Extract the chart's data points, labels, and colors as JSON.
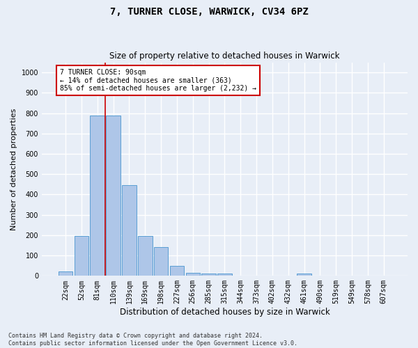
{
  "title": "7, TURNER CLOSE, WARWICK, CV34 6PZ",
  "subtitle": "Size of property relative to detached houses in Warwick",
  "xlabel": "Distribution of detached houses by size in Warwick",
  "ylabel": "Number of detached properties",
  "bin_labels": [
    "22sqm",
    "52sqm",
    "81sqm",
    "110sqm",
    "139sqm",
    "169sqm",
    "198sqm",
    "227sqm",
    "256sqm",
    "285sqm",
    "315sqm",
    "344sqm",
    "373sqm",
    "402sqm",
    "432sqm",
    "461sqm",
    "490sqm",
    "519sqm",
    "549sqm",
    "578sqm",
    "607sqm"
  ],
  "bar_heights": [
    20,
    195,
    790,
    790,
    445,
    195,
    140,
    50,
    15,
    12,
    12,
    0,
    0,
    0,
    0,
    10,
    0,
    0,
    0,
    0,
    0
  ],
  "bar_color": "#aec6e8",
  "bar_edge_color": "#5a9fd4",
  "vline_x": 2.5,
  "vline_color": "#cc0000",
  "annotation_text": "7 TURNER CLOSE: 90sqm\n← 14% of detached houses are smaller (363)\n85% of semi-detached houses are larger (2,232) →",
  "annotation_box_color": "#ffffff",
  "annotation_box_edge_color": "#cc0000",
  "ylim": [
    0,
    1050
  ],
  "yticks": [
    0,
    100,
    200,
    300,
    400,
    500,
    600,
    700,
    800,
    900,
    1000
  ],
  "background_color": "#e8eef7",
  "grid_color": "#ffffff",
  "footer": "Contains HM Land Registry data © Crown copyright and database right 2024.\nContains public sector information licensed under the Open Government Licence v3.0.",
  "title_fontsize": 10,
  "subtitle_fontsize": 8.5,
  "xlabel_fontsize": 8.5,
  "ylabel_fontsize": 8,
  "tick_fontsize": 7,
  "annotation_fontsize": 7,
  "footer_fontsize": 6
}
